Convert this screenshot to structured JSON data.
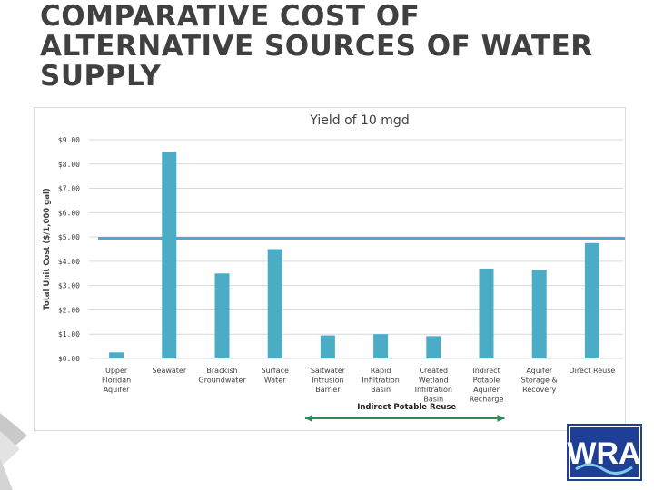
{
  "slide": {
    "title_lines": [
      "COMPARATIVE COST OF",
      "ALTERNATIVE SOURCES OF WATER",
      "SUPPLY"
    ],
    "logo_text": "WRA"
  },
  "chart_data": {
    "type": "bar",
    "title": "",
    "subtitle": "Yield of 10 mgd",
    "xlabel": "",
    "ylabel": "Total Unit Cost ($/1,000 gal)",
    "ylim": [
      0,
      9
    ],
    "yticks": [
      "$0.00",
      "$1.00",
      "$2.00",
      "$3.00",
      "$4.00",
      "$5.00",
      "$6.00",
      "$7.00",
      "$8.00",
      "$9.00"
    ],
    "categories": [
      [
        "Upper",
        "Floridan",
        "Aquifer"
      ],
      [
        "Seawater"
      ],
      [
        "Brackish",
        "Groundwater"
      ],
      [
        "Surface",
        "Water"
      ],
      [
        "Saltwater",
        "Intrusion",
        "Barrier"
      ],
      [
        "Rapid",
        "Infiltration",
        "Basin"
      ],
      [
        "Created",
        "Wetland",
        "Infiltration",
        "Basin"
      ],
      [
        "Indirect",
        "Potable",
        "Aquifer",
        "Recharge"
      ],
      [
        "Aquifer",
        "Storage &",
        "Recovery"
      ],
      [
        "Direct Reuse"
      ]
    ],
    "values": [
      0.25,
      8.5,
      3.5,
      4.5,
      0.95,
      1.0,
      0.92,
      3.7,
      3.65,
      4.75
    ],
    "reference_line": 4.95,
    "bracket_label": "Indirect Potable Reuse",
    "bracket_span": [
      4,
      7
    ],
    "grid": true,
    "colors": {
      "bar": "#4bacc6",
      "reference_line": "#4bacc6",
      "grid": "#d9d9d9",
      "axis_text": "#404040",
      "bracket": "#2e8b57"
    }
  }
}
